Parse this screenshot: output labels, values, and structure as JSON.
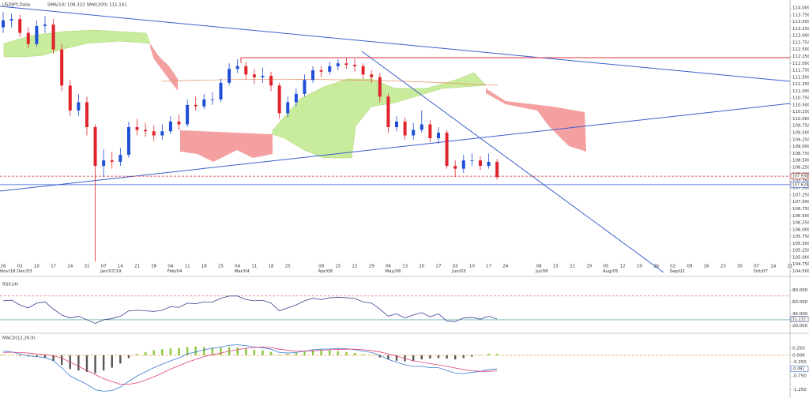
{
  "chart_data": [
    {
      "type": "candlestick",
      "title": "USDJPY,Daily",
      "subtitle": "SMA(10) 108.322  SMA(200) 111.141",
      "up_color": "#1f4fd6",
      "down_color": "#e0242c",
      "categories": [
        "26",
        null,
        "03",
        null,
        "10",
        null,
        "17",
        null,
        "24",
        null,
        "31",
        null,
        "07",
        null,
        "14",
        null,
        "21",
        null,
        "28",
        null,
        "04",
        null,
        "11",
        null,
        "18",
        null,
        "25",
        null,
        "04",
        null,
        "11",
        null,
        "18",
        null,
        "25",
        null,
        null,
        null,
        "08",
        null,
        "15",
        null,
        "22",
        null,
        "29",
        null,
        "06",
        null,
        "13",
        null,
        "20",
        null,
        "27",
        null,
        "03",
        null,
        "10",
        null,
        "17",
        null,
        "24",
        null,
        null,
        null,
        "08",
        null,
        "15",
        null,
        "22",
        null,
        "29",
        null,
        "05",
        null,
        "12",
        null,
        "19",
        null,
        "26",
        null,
        "02",
        null,
        "09",
        null,
        "16",
        null,
        "23",
        null,
        "30",
        null,
        "07",
        null,
        "14",
        null,
        "21"
      ],
      "month_labels": [
        "Nov/18",
        null,
        "Dec/03",
        null,
        null,
        null,
        null,
        null,
        null,
        null,
        null,
        null,
        "Jan/07/19",
        null,
        null,
        null,
        null,
        null,
        null,
        null,
        "Feb/04",
        null,
        null,
        null,
        null,
        null,
        null,
        null,
        "Mar/04",
        null,
        null,
        null,
        null,
        null,
        null,
        null,
        null,
        null,
        "Apr/08",
        null,
        null,
        null,
        null,
        null,
        null,
        null,
        "May/06",
        null,
        null,
        null,
        null,
        null,
        null,
        null,
        "Jun/03",
        null,
        null,
        null,
        null,
        null,
        null,
        null,
        null,
        null,
        "Jul/08",
        null,
        null,
        null,
        null,
        null,
        null,
        null,
        "Aug/05",
        null,
        null,
        null,
        null,
        null,
        null,
        null,
        "Sep/02",
        null,
        null,
        null,
        null,
        null,
        null,
        null,
        null,
        null,
        "Oct/07",
        null,
        null,
        null,
        null
      ],
      "open": [
        113.3,
        113.55,
        113.6,
        113.1,
        112.7,
        113.35,
        113.4,
        112.5,
        111.2,
        110.3,
        110.6,
        109.7,
        108.3,
        108.5,
        108.45,
        108.7,
        109.7,
        109.6,
        109.55,
        109.4,
        109.55,
        109.9,
        109.8,
        110.5,
        110.45,
        110.7,
        110.7,
        111.3,
        111.8,
        111.9,
        111.6,
        111.5,
        111.55,
        111.2,
        110.2,
        110.6,
        110.9,
        111.4,
        111.75,
        111.7,
        111.9,
        112.0,
        111.95,
        111.9,
        111.6,
        111.5,
        110.8,
        109.7,
        109.9,
        109.4,
        109.6,
        109.8,
        109.3,
        109.5,
        108.3,
        108.2,
        108.5,
        108.5,
        108.3,
        108.45,
        null,
        null,
        null,
        null,
        null,
        null,
        null,
        null,
        null,
        null,
        null,
        null,
        null,
        null,
        null,
        null,
        null,
        null,
        null,
        null,
        null,
        null,
        null,
        null,
        null,
        null,
        null,
        null,
        null,
        null,
        null,
        null,
        null,
        null,
        null
      ],
      "high": [
        113.85,
        113.8,
        113.75,
        113.3,
        113.55,
        113.7,
        113.6,
        112.7,
        111.4,
        110.9,
        110.8,
        109.8,
        108.9,
        108.8,
        108.95,
        109.9,
        110.0,
        109.85,
        109.75,
        109.8,
        110.1,
        110.15,
        110.7,
        110.8,
        110.9,
        110.95,
        111.45,
        112.0,
        112.15,
        112.05,
        111.8,
        111.85,
        111.7,
        111.3,
        110.8,
        111.1,
        111.6,
        111.9,
        111.9,
        112.05,
        112.15,
        112.2,
        112.15,
        112.0,
        111.75,
        111.65,
        110.9,
        110.1,
        110.05,
        109.85,
        110.3,
        109.95,
        109.7,
        109.6,
        108.5,
        108.7,
        108.75,
        108.65,
        108.75,
        108.55,
        null,
        null,
        null,
        null,
        null,
        null,
        null,
        null,
        null,
        null,
        null,
        null,
        null,
        null,
        null,
        null,
        null,
        null,
        null,
        null,
        null,
        null,
        null,
        null,
        null,
        null,
        null,
        null,
        null,
        null,
        null,
        null,
        null,
        null,
        null
      ],
      "low": [
        113.1,
        113.3,
        112.95,
        112.55,
        112.6,
        113.1,
        112.35,
        111.0,
        110.1,
        110.1,
        109.4,
        104.85,
        107.9,
        108.2,
        108.3,
        108.6,
        109.4,
        109.35,
        109.2,
        109.25,
        109.45,
        109.6,
        109.7,
        110.3,
        110.35,
        110.5,
        110.6,
        111.2,
        111.65,
        111.4,
        111.25,
        111.3,
        111.0,
        110.0,
        110.05,
        110.45,
        110.8,
        111.3,
        111.5,
        111.6,
        111.75,
        111.8,
        111.7,
        111.45,
        111.3,
        110.6,
        109.5,
        109.55,
        109.25,
        109.25,
        109.5,
        109.15,
        109.1,
        108.2,
        107.9,
        108.05,
        108.3,
        108.15,
        108.2,
        107.8,
        null,
        null,
        null,
        null,
        null,
        null,
        null,
        null,
        null,
        null,
        null,
        null,
        null,
        null,
        null,
        null,
        null,
        null,
        null,
        null,
        null,
        null,
        null,
        null,
        null,
        null,
        null,
        null,
        null,
        null,
        null,
        null,
        null,
        null,
        null
      ],
      "close": [
        113.55,
        113.6,
        113.1,
        112.7,
        113.35,
        113.4,
        112.5,
        111.2,
        110.3,
        110.6,
        109.7,
        108.3,
        108.5,
        108.45,
        108.7,
        109.7,
        109.6,
        109.55,
        109.4,
        109.55,
        109.9,
        109.8,
        110.5,
        110.45,
        110.7,
        110.7,
        111.3,
        111.8,
        111.9,
        111.6,
        111.5,
        111.55,
        111.2,
        110.2,
        110.6,
        110.9,
        111.4,
        111.75,
        111.7,
        111.9,
        112.0,
        111.95,
        111.9,
        111.6,
        111.5,
        110.8,
        109.7,
        109.9,
        109.4,
        109.6,
        109.8,
        109.3,
        109.5,
        108.3,
        108.2,
        108.5,
        108.5,
        108.3,
        108.45,
        107.9,
        null,
        null,
        null,
        null,
        null,
        null,
        null,
        null,
        null,
        null,
        null,
        null,
        null,
        null,
        null,
        null,
        null,
        null,
        null,
        null,
        null,
        null,
        null,
        null,
        null,
        null,
        null,
        null,
        null,
        null,
        null,
        null,
        null,
        null,
        null
      ],
      "price_lines": [
        {
          "value": 107.93,
          "label": "107.930",
          "color": "#d03030",
          "dashed": true
        },
        {
          "value": 107.624,
          "label": "107.624",
          "color": "#3a5fcd",
          "dashed": false
        }
      ],
      "ylim": [
        104.4,
        114.23
      ],
      "yticks": [
        {
          "value": 114,
          "label": "114.000"
        },
        {
          "value": 113.75,
          "label": "113.750"
        },
        {
          "value": 113.5,
          "label": "113.500"
        },
        {
          "value": 113.25,
          "label": "113.250"
        },
        {
          "value": 113,
          "label": "113.000"
        },
        {
          "value": 112.75,
          "label": "112.750"
        },
        {
          "value": 112.5,
          "label": "112.500"
        },
        {
          "value": 112.25,
          "label": "112.250"
        },
        {
          "value": 112,
          "label": "112.000"
        },
        {
          "value": 111.75,
          "label": "111.750"
        },
        {
          "value": 111.5,
          "label": "111.500"
        },
        {
          "value": 111.25,
          "label": "111.250"
        },
        {
          "value": 111,
          "label": "111.000"
        },
        {
          "value": 110.75,
          "label": "110.750"
        },
        {
          "value": 110.5,
          "label": "110.500"
        },
        {
          "value": 110.25,
          "label": "110.250"
        },
        {
          "value": 110,
          "label": "110.000"
        },
        {
          "value": 109.75,
          "label": "109.750"
        },
        {
          "value": 109.5,
          "label": "109.500"
        },
        {
          "value": 109.25,
          "label": "109.250"
        },
        {
          "value": 109,
          "label": "109.000"
        },
        {
          "value": 108.75,
          "label": "108.750"
        },
        {
          "value": 108.5,
          "label": "108.500"
        },
        {
          "value": 108.25,
          "label": "108.250"
        },
        {
          "value": 108,
          "label": "108.000"
        },
        {
          "value": 107.75,
          "label": "107.750"
        },
        {
          "value": 107.5,
          "label": "107.500"
        },
        {
          "value": 107.25,
          "label": "107.250"
        },
        {
          "value": 107,
          "label": "107.000"
        },
        {
          "value": 106.75,
          "label": "106.750"
        },
        {
          "value": 106.5,
          "label": "106.500"
        },
        {
          "value": 106.25,
          "label": "106.250"
        },
        {
          "value": 106,
          "label": "106.000"
        },
        {
          "value": 105.75,
          "label": "105.750"
        },
        {
          "value": 105.5,
          "label": "105.500"
        },
        {
          "value": 105.25,
          "label": "105.250"
        },
        {
          "value": 105,
          "label": "105.000"
        },
        {
          "value": 104.75,
          "label": "104.750"
        },
        {
          "value": 104.5,
          "label": "104.500"
        }
      ]
    },
    {
      "type": "line",
      "title": "RSI(14)",
      "color": "#3d3d8f",
      "values": [
        62,
        63,
        55,
        50,
        58,
        60,
        48,
        38,
        33,
        36,
        30,
        24,
        30,
        32,
        36,
        45,
        46,
        45,
        44,
        46,
        52,
        51,
        58,
        57,
        60,
        60,
        66,
        70,
        70,
        64,
        62,
        63,
        58,
        45,
        50,
        55,
        62,
        66,
        64,
        67,
        68,
        67,
        66,
        60,
        58,
        48,
        36,
        40,
        33,
        38,
        42,
        35,
        40,
        28,
        27,
        33,
        34,
        31,
        36,
        31.232
      ],
      "levels": [
        {
          "value": 70,
          "color": "#e05a5a",
          "dashed": true
        },
        {
          "value": 30,
          "color": "#2aa198",
          "dashed": false
        }
      ],
      "ylim": [
        10,
        95
      ],
      "yticks": [
        {
          "value": 80,
          "label": "80.000"
        },
        {
          "value": 60,
          "label": "60.000"
        },
        {
          "value": 40,
          "label": "40.000"
        },
        {
          "value": 20,
          "label": "20.000"
        }
      ]
    },
    {
      "type": "macd",
      "title": "MACD(12,26,9)",
      "histogram": {
        "positive_color": "#8cc63f",
        "negative_color": "#555555",
        "values": [
          0.02,
          0.01,
          -0.02,
          -0.04,
          -0.05,
          -0.1,
          -0.2,
          -0.35,
          -0.5,
          -0.55,
          -0.6,
          -0.65,
          -0.55,
          -0.45,
          -0.3,
          -0.1,
          0.05,
          0.12,
          0.18,
          0.22,
          0.25,
          0.27,
          0.3,
          0.32,
          0.3,
          0.28,
          0.28,
          0.3,
          0.28,
          0.25,
          0.2,
          0.18,
          0.12,
          0.02,
          0.05,
          0.1,
          0.15,
          0.2,
          0.2,
          0.18,
          0.15,
          0.12,
          0.08,
          0.04,
          0.0,
          -0.08,
          -0.15,
          -0.2,
          -0.22,
          -0.2,
          -0.15,
          -0.12,
          -0.1,
          -0.12,
          -0.15,
          -0.1,
          -0.05,
          0.02,
          0.06,
          0.05
        ]
      },
      "series": [
        {
          "color": "#3a7bd5",
          "values": [
            0.15,
            0.12,
            0.05,
            -0.02,
            -0.05,
            -0.08,
            -0.2,
            -0.45,
            -0.75,
            -0.9,
            -1.05,
            -1.25,
            -1.3,
            -1.28,
            -1.15,
            -0.95,
            -0.75,
            -0.6,
            -0.45,
            -0.32,
            -0.2,
            -0.1,
            0.05,
            0.12,
            0.2,
            0.25,
            0.3,
            0.36,
            0.38,
            0.35,
            0.3,
            0.27,
            0.22,
            0.1,
            0.08,
            0.1,
            0.15,
            0.2,
            0.22,
            0.23,
            0.25,
            0.24,
            0.2,
            0.15,
            0.1,
            0.0,
            -0.15,
            -0.25,
            -0.35,
            -0.4,
            -0.4,
            -0.45,
            -0.45,
            -0.55,
            -0.65,
            -0.66,
            -0.62,
            -0.58,
            -0.52,
            -0.491
          ]
        },
        {
          "color": "#e0407a",
          "values": [
            0.1,
            0.11,
            0.1,
            0.08,
            0.05,
            0.02,
            -0.02,
            -0.1,
            -0.25,
            -0.4,
            -0.55,
            -0.7,
            -0.85,
            -0.95,
            -1.05,
            -1.05,
            -1.0,
            -0.9,
            -0.78,
            -0.65,
            -0.5,
            -0.38,
            -0.25,
            -0.15,
            -0.05,
            0.02,
            0.08,
            0.15,
            0.2,
            0.25,
            0.28,
            0.3,
            0.28,
            0.22,
            0.18,
            0.15,
            0.15,
            0.16,
            0.18,
            0.2,
            0.21,
            0.22,
            0.22,
            0.2,
            0.17,
            0.12,
            0.05,
            -0.03,
            -0.12,
            -0.2,
            -0.25,
            -0.3,
            -0.35,
            -0.4,
            -0.46,
            -0.52,
            -0.56,
            -0.58,
            -0.58,
            -0.56
          ]
        }
      ],
      "levels": [
        {
          "value": 0,
          "color": "#e8a040",
          "dashed": true
        }
      ],
      "ylim": [
        -1.49,
        0.74
      ],
      "yticks": [
        {
          "value": 0.25,
          "label": "0.250"
        },
        {
          "value": 0,
          "label": "0.000"
        },
        {
          "value": -0.25,
          "label": "-0.250"
        },
        {
          "value": -0.75,
          "label": "-0.750"
        },
        {
          "value": -1.25,
          "label": "-1.250"
        }
      ]
    }
  ]
}
